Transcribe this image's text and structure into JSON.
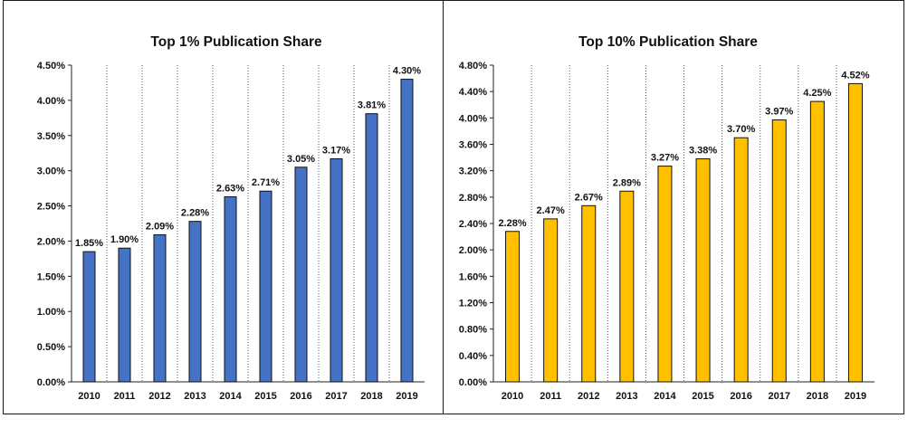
{
  "chart_data": [
    {
      "type": "bar",
      "title": "Top 1% Publication Share",
      "xlabel": "",
      "ylabel": "",
      "categories": [
        "2010",
        "2011",
        "2012",
        "2013",
        "2014",
        "2015",
        "2016",
        "2017",
        "2018",
        "2019"
      ],
      "values": [
        1.85,
        1.9,
        2.09,
        2.28,
        2.63,
        2.71,
        3.05,
        3.17,
        3.81,
        4.3
      ],
      "value_labels": [
        "1.85%",
        "1.90%",
        "2.09%",
        "2.28%",
        "2.63%",
        "2.71%",
        "3.05%",
        "3.17%",
        "3.81%",
        "4.30%"
      ],
      "ylim": [
        0,
        4.5
      ],
      "yticks": [
        0,
        0.5,
        1.0,
        1.5,
        2.0,
        2.5,
        3.0,
        3.5,
        4.0,
        4.5
      ],
      "ytick_labels": [
        "0.00%",
        "0.50%",
        "1.00%",
        "1.50%",
        "2.00%",
        "2.50%",
        "3.00%",
        "3.50%",
        "4.00%",
        "4.50%"
      ],
      "bar_color": "#4472c4",
      "grid": "vertical dotted lines between categories",
      "legend": "none"
    },
    {
      "type": "bar",
      "title": "Top 10% Publication Share",
      "xlabel": "",
      "ylabel": "",
      "categories": [
        "2010",
        "2011",
        "2012",
        "2013",
        "2014",
        "2015",
        "2016",
        "2017",
        "2018",
        "2019"
      ],
      "values": [
        2.28,
        2.47,
        2.67,
        2.89,
        3.27,
        3.38,
        3.7,
        3.97,
        4.25,
        4.52
      ],
      "value_labels": [
        "2.28%",
        "2.47%",
        "2.67%",
        "2.89%",
        "3.27%",
        "3.38%",
        "3.70%",
        "3.97%",
        "4.25%",
        "4.52%"
      ],
      "ylim": [
        0,
        4.8
      ],
      "yticks": [
        0,
        0.4,
        0.8,
        1.2,
        1.6,
        2.0,
        2.4,
        2.8,
        3.2,
        3.6,
        4.0,
        4.4,
        4.8
      ],
      "ytick_labels": [
        "0.00%",
        "0.40%",
        "0.80%",
        "1.20%",
        "1.60%",
        "2.00%",
        "2.40%",
        "2.80%",
        "3.20%",
        "3.60%",
        "4.00%",
        "4.40%",
        "4.80%"
      ],
      "bar_color": "#ffc000",
      "grid": "vertical dotted lines between categories",
      "legend": "none"
    }
  ]
}
